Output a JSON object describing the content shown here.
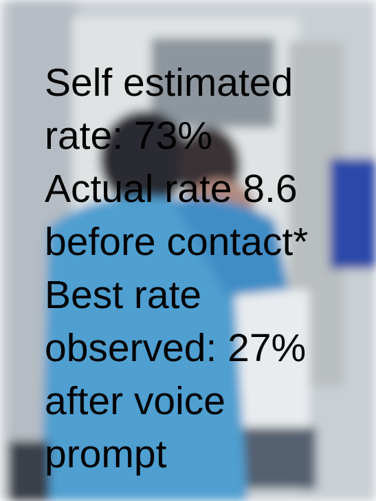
{
  "caption": {
    "lines": [
      "Self estimated",
      "rate: 73%",
      "Actual rate 8.6",
      "before contact*",
      "Best rate",
      "observed: 27%",
      "after voice",
      "prompt"
    ]
  }
}
